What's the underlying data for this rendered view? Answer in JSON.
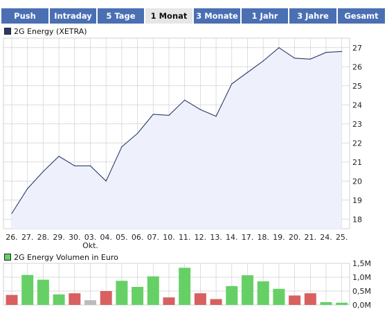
{
  "tabs": [
    "Push",
    "Intraday",
    "5 Tage",
    "1 Monat",
    "3 Monate",
    "1 Jahr",
    "3 Jahre",
    "Gesamt"
  ],
  "active_tab": "1 Monat",
  "colors": {
    "tab_bg": "#4a6fb3",
    "tab_active_bg": "#e6e6e6",
    "price_line": "#2b3a6b",
    "area_fill": "#eef0fb",
    "volume_up": "#66d066",
    "volume_down": "#d86060",
    "volume_neutral": "#bcbcbc",
    "grid": "#d0d0d0"
  },
  "chart_data": [
    {
      "type": "area",
      "legend": "2G Energy (XETRA)",
      "categories": [
        "26.",
        "27.",
        "28.",
        "29.",
        "30.",
        "03.",
        "04.",
        "05.",
        "06.",
        "07.",
        "10.",
        "11.",
        "12.",
        "13.",
        "14.",
        "17.",
        "18.",
        "19.",
        "20.",
        "21.",
        "24.",
        "25."
      ],
      "month_label": "Okt.",
      "series": [
        {
          "name": "2G Energy (XETRA)",
          "values": [
            18.3,
            19.6,
            20.5,
            21.3,
            20.8,
            20.8,
            20.0,
            21.8,
            22.5,
            23.5,
            23.45,
            24.25,
            23.75,
            23.4,
            25.1,
            25.7,
            26.3,
            27.0,
            26.45,
            26.4,
            26.75,
            26.8
          ]
        }
      ],
      "yticks": [
        18,
        19,
        20,
        21,
        22,
        23,
        24,
        25,
        26,
        27
      ],
      "ylim": [
        17.5,
        27.5
      ],
      "grid": true
    },
    {
      "type": "bar",
      "legend": "2G Energy Volumen in Euro",
      "categories": [
        "26.",
        "27.",
        "28.",
        "29.",
        "30.",
        "03.",
        "04.",
        "05.",
        "06.",
        "07.",
        "10.",
        "11.",
        "12.",
        "13.",
        "14.",
        "17.",
        "18.",
        "19.",
        "20.",
        "21.",
        "24.",
        "25."
      ],
      "values": [
        0.36,
        1.08,
        0.91,
        0.38,
        0.42,
        0.17,
        0.5,
        0.87,
        0.65,
        1.03,
        0.27,
        1.34,
        0.42,
        0.21,
        0.68,
        1.07,
        0.85,
        0.58,
        0.34,
        0.42,
        0.1,
        0.08
      ],
      "direction": [
        "down",
        "up",
        "up",
        "up",
        "down",
        "neutral",
        "down",
        "up",
        "up",
        "up",
        "down",
        "up",
        "down",
        "down",
        "up",
        "up",
        "up",
        "up",
        "down",
        "down",
        "up",
        "up"
      ],
      "yticks": [
        "0,0M",
        "0,5M",
        "1,0M",
        "1,5M"
      ],
      "ytick_values": [
        0,
        0.5,
        1.0,
        1.5
      ],
      "ylim": [
        0,
        1.5
      ],
      "unit": "Mio. Euro",
      "grid": true
    }
  ]
}
